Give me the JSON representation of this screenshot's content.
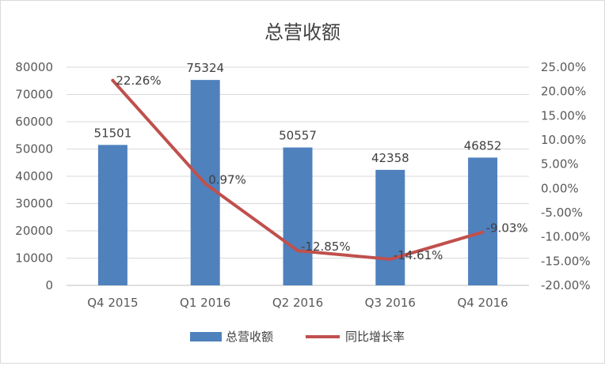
{
  "chart_data": {
    "type": "bar",
    "title": "总营收额",
    "categories": [
      "Q4 2015",
      "Q1 2016",
      "Q2 2016",
      "Q3 2016",
      "Q4 2016"
    ],
    "series": [
      {
        "name": "总营收额",
        "type": "bar",
        "axis": "left",
        "color": "#4f81bd",
        "values": [
          51501,
          75324,
          50557,
          42358,
          46852
        ],
        "labels": [
          "51501",
          "75324",
          "50557",
          "42358",
          "46852"
        ]
      },
      {
        "name": "同比增长率",
        "type": "line",
        "axis": "right",
        "color": "#c0504d",
        "values": [
          22.26,
          0.97,
          -12.85,
          -14.61,
          -9.03
        ],
        "labels": [
          "22.26%",
          "0.97%",
          "-12.85%",
          "-14.61%",
          "-9.03%"
        ]
      }
    ],
    "y_left": {
      "ylim": [
        0,
        80000
      ],
      "ticks": [
        "0",
        "10000",
        "20000",
        "30000",
        "40000",
        "50000",
        "60000",
        "70000",
        "80000"
      ]
    },
    "y_right": {
      "ylim": [
        -20,
        25
      ],
      "ticks": [
        "-20.00%",
        "-15.00%",
        "-10.00%",
        "-5.00%",
        "0.00%",
        "5.00%",
        "10.00%",
        "15.00%",
        "20.00%",
        "25.00%"
      ]
    },
    "grid": true,
    "legend": "bottom"
  }
}
